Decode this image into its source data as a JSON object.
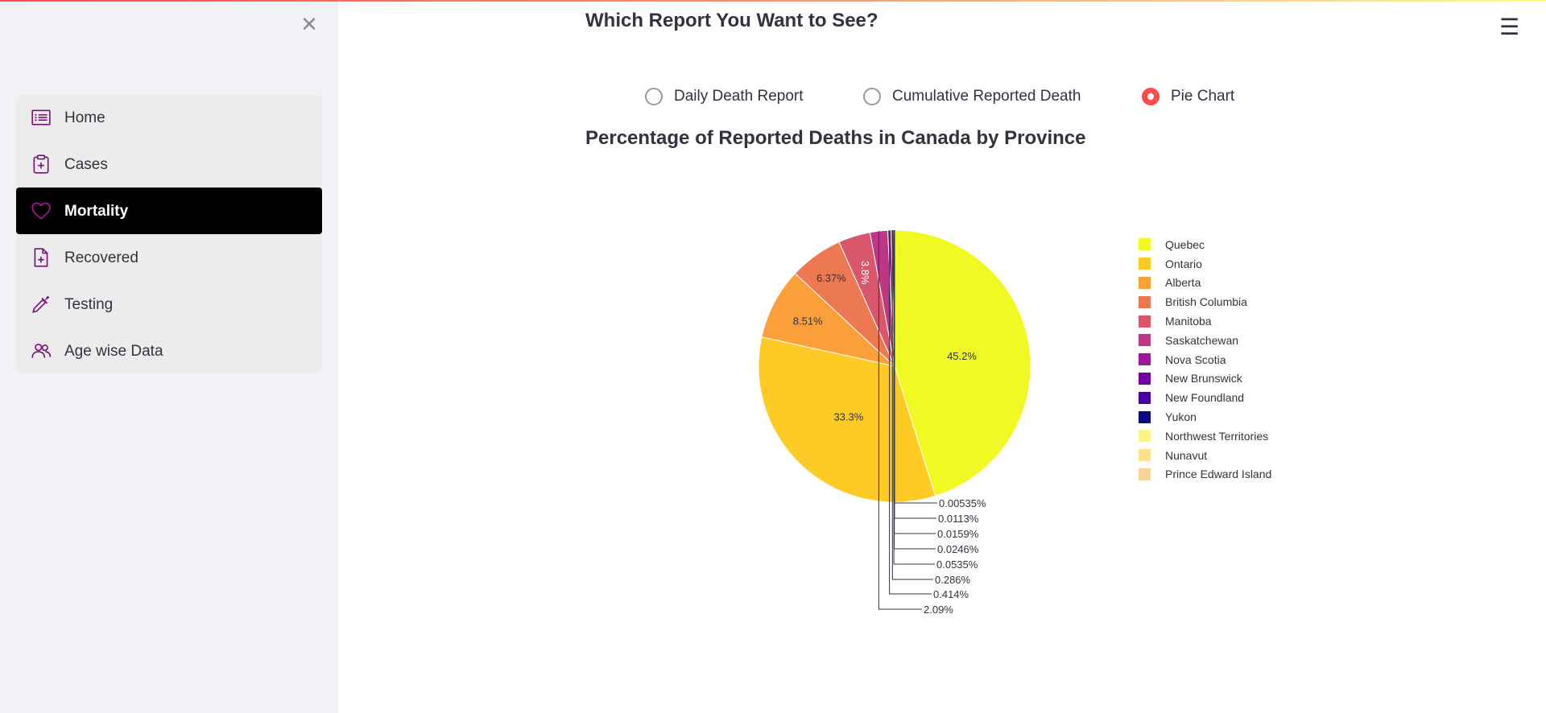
{
  "sidebar": {
    "close_icon": "close-icon",
    "items": [
      {
        "label": "Home",
        "icon": "list-icon",
        "active": false
      },
      {
        "label": "Cases",
        "icon": "clipboard-plus-icon",
        "active": false
      },
      {
        "label": "Mortality",
        "icon": "heart-icon",
        "active": true
      },
      {
        "label": "Recovered",
        "icon": "file-plus-icon",
        "active": false
      },
      {
        "label": "Testing",
        "icon": "eyedropper-icon",
        "active": false
      },
      {
        "label": "Age wise Data",
        "icon": "people-icon",
        "active": false
      }
    ],
    "accent_color": "#7b0f7a"
  },
  "main": {
    "menu_icon": "hamburger-menu-icon",
    "heading": "Which Report You Want to See?",
    "radio_options": [
      {
        "label": "Daily Death Report",
        "selected": false
      },
      {
        "label": "Cumulative Reported Death",
        "selected": false
      },
      {
        "label": "Pie Chart",
        "selected": true
      }
    ],
    "accent_color": "#ff4b4b"
  },
  "chart_data": {
    "type": "pie",
    "title": "Percentage of Reported Deaths in Canada by Province",
    "slices": [
      {
        "name": "Quebec",
        "percent": 45.2,
        "label": "45.2%",
        "color": "#f0f921"
      },
      {
        "name": "Ontario",
        "percent": 33.3,
        "label": "33.3%",
        "color": "#fdca26"
      },
      {
        "name": "Alberta",
        "percent": 8.51,
        "label": "8.51%",
        "color": "#fb9f3a"
      },
      {
        "name": "British Columbia",
        "percent": 6.37,
        "label": "6.37%",
        "color": "#ed7953"
      },
      {
        "name": "Manitoba",
        "percent": 3.8,
        "label": "3.8%",
        "color": "#d8576b"
      },
      {
        "name": "Saskatchewan",
        "percent": 2.09,
        "label": "2.09%",
        "color": "#bd3786"
      },
      {
        "name": "Nova Scotia",
        "percent": 0.414,
        "label": "0.414%",
        "color": "#9c179e"
      },
      {
        "name": "New Brunswick",
        "percent": 0.286,
        "label": "0.286%",
        "color": "#7201a8"
      },
      {
        "name": "New Foundland",
        "percent": 0.0535,
        "label": "0.0535%",
        "color": "#46039f"
      },
      {
        "name": "Yukon",
        "percent": 0.0246,
        "label": "0.0246%",
        "color": "#0d0887"
      },
      {
        "name": "Northwest Territories",
        "percent": 0.0159,
        "label": "0.0159%",
        "color": "#f9f48c"
      },
      {
        "name": "Nunavut",
        "percent": 0.0113,
        "label": "0.0113%",
        "color": "#fbe18e"
      },
      {
        "name": "Prince Edward Island",
        "percent": 0.00535,
        "label": "0.00535%",
        "color": "#fcd09a"
      }
    ],
    "legend_position": "right"
  }
}
